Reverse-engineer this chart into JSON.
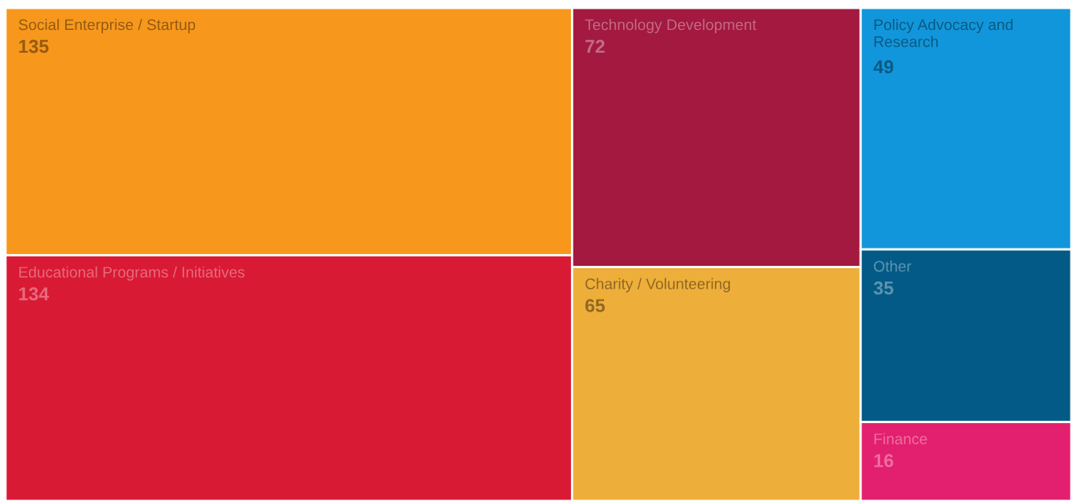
{
  "chart_data": {
    "type": "other",
    "categories": [
      "Social Enterprise / Startup",
      "Educational Programs / Initiatives",
      "Technology Development",
      "Charity / Volunteering",
      "Policy Advocacy and\nResearch",
      "Other",
      "Finance"
    ],
    "values": [
      135,
      134,
      72,
      65,
      49,
      35,
      16
    ],
    "colors": [
      "#f7981d",
      "#d91a35",
      "#a3193f",
      "#eeae3a",
      "#1296db",
      "#035a87",
      "#e3206f"
    ],
    "data_labels": true
  }
}
